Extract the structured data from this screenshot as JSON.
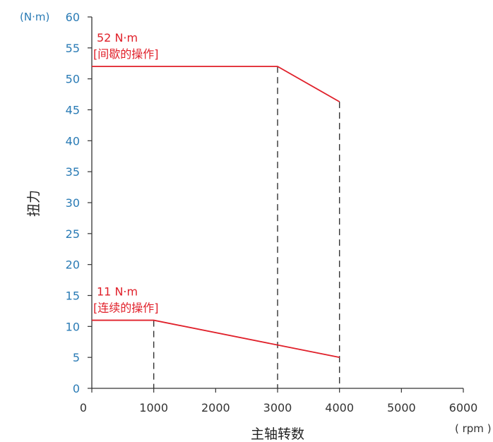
{
  "chart_data": {
    "type": "line",
    "xlabel": "主轴转数",
    "ylabel": "扭力",
    "x_unit": "( rpm )",
    "y_unit": "(N·m)",
    "xlim": [
      0,
      6000
    ],
    "ylim": [
      0,
      60
    ],
    "x_ticks": [
      "0",
      "1000",
      "2000",
      "3000",
      "4000",
      "5000",
      "6000"
    ],
    "y_ticks": [
      "0",
      "5",
      "10",
      "15",
      "20",
      "25",
      "30",
      "35",
      "40",
      "45",
      "50",
      "55",
      "60"
    ],
    "grid": false,
    "series": [
      {
        "points": [
          [
            0,
            52
          ],
          [
            3000,
            52
          ],
          [
            4000,
            46.3
          ]
        ],
        "annotation": [
          "52 N·m",
          "[间歇的操作]"
        ],
        "color": "#e0202a"
      },
      {
        "points": [
          [
            0,
            11
          ],
          [
            1000,
            11
          ],
          [
            3000,
            7
          ],
          [
            4000,
            5
          ]
        ],
        "annotation": [
          "11 N·m",
          "[连续的操作]"
        ],
        "color": "#e0202a"
      }
    ],
    "dashed_guides_x": [
      1000,
      3000,
      4000
    ],
    "colors": {
      "axis": "#333333",
      "y_ticks": "#2a7bb5",
      "series": "#e0202a",
      "guides": "#333333"
    }
  }
}
